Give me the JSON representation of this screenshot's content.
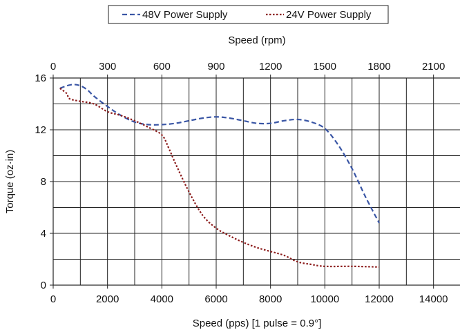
{
  "chart_data": {
    "type": "line",
    "xlabel": "Speed (pps) [1 pulse = 0.9°]",
    "ylabel": "Torque (oz·in)",
    "x2label": "Speed (rpm)",
    "xlim": [
      0,
      15000
    ],
    "ylim": [
      0,
      16
    ],
    "x2lim": [
      0,
      2250
    ],
    "xticks": [
      "0",
      "2000",
      "4000",
      "6000",
      "8000",
      "10000",
      "12000",
      "14000"
    ],
    "x2ticks": [
      "0",
      "300",
      "600",
      "900",
      "1200",
      "1500",
      "1800",
      "2100"
    ],
    "yticks": [
      "0",
      "4",
      "8",
      "12",
      "16"
    ],
    "grid": true,
    "legend_position": "top",
    "series": [
      {
        "name": "48V Power Supply",
        "color": "#3a56a5",
        "dash": "dashed",
        "x": [
          250,
          500,
          750,
          1000,
          1250,
          1500,
          2000,
          2500,
          3000,
          3500,
          4000,
          4500,
          5000,
          5500,
          6000,
          6500,
          7000,
          7500,
          8000,
          8500,
          9000,
          9500,
          10000,
          10500,
          11000,
          11500,
          12000
        ],
        "y": [
          15.2,
          15.4,
          15.5,
          15.4,
          15.1,
          14.6,
          13.8,
          13.1,
          12.6,
          12.4,
          12.4,
          12.5,
          12.7,
          12.9,
          13.0,
          12.9,
          12.7,
          12.5,
          12.5,
          12.7,
          12.8,
          12.6,
          12.1,
          10.8,
          9.0,
          6.8,
          4.8
        ]
      },
      {
        "name": "24V Power Supply",
        "color": "#8b1a1a",
        "dash": "dotted",
        "x": [
          250,
          500,
          600,
          1000,
          1500,
          2000,
          2500,
          3000,
          3500,
          4000,
          4250,
          4500,
          5000,
          5500,
          6000,
          6500,
          7000,
          7500,
          8000,
          8500,
          9000,
          9500,
          10000,
          11000,
          12000
        ],
        "y": [
          15.2,
          14.8,
          14.4,
          14.2,
          14.0,
          13.4,
          13.1,
          12.7,
          12.2,
          11.6,
          10.6,
          9.4,
          7.2,
          5.4,
          4.4,
          3.8,
          3.3,
          2.9,
          2.6,
          2.3,
          1.8,
          1.6,
          1.45,
          1.45,
          1.4
        ]
      }
    ]
  }
}
